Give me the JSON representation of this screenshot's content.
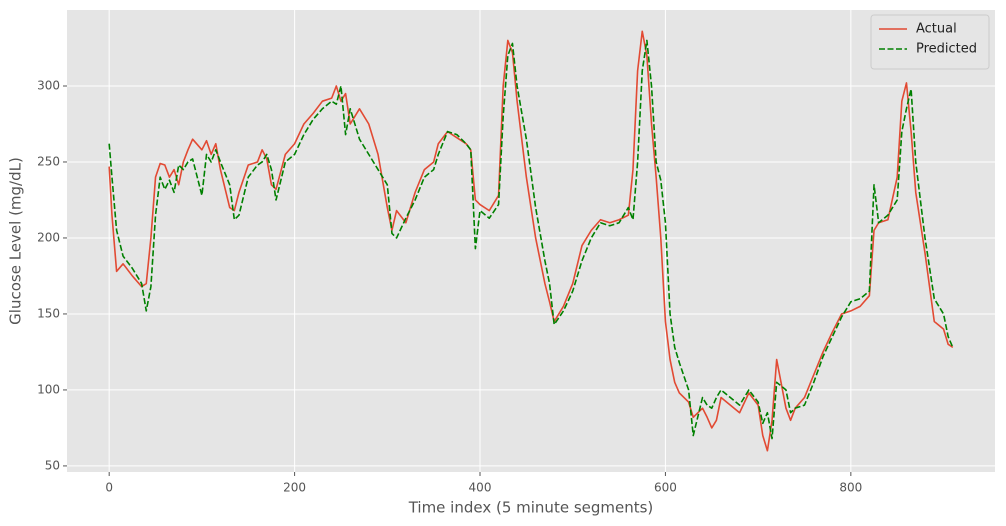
{
  "chart_data": {
    "type": "line",
    "x_label": "Time index (5 minute segments)",
    "y_label": "Glucose Level (mg/dL)",
    "x": [
      0,
      3,
      8,
      15,
      25,
      35,
      40,
      45,
      50,
      55,
      60,
      65,
      70,
      75,
      80,
      85,
      90,
      100,
      105,
      110,
      115,
      120,
      130,
      135,
      140,
      150,
      160,
      165,
      170,
      175,
      180,
      190,
      200,
      210,
      220,
      230,
      240,
      245,
      250,
      255,
      260,
      270,
      280,
      290,
      300,
      305,
      310,
      320,
      330,
      340,
      350,
      355,
      365,
      375,
      385,
      390,
      395,
      400,
      410,
      420,
      425,
      430,
      435,
      440,
      450,
      460,
      470,
      475,
      480,
      490,
      500,
      510,
      520,
      530,
      540,
      550,
      560,
      565,
      570,
      575,
      580,
      585,
      590,
      595,
      600,
      605,
      610,
      615,
      625,
      630,
      640,
      645,
      650,
      655,
      660,
      670,
      680,
      690,
      700,
      705,
      710,
      715,
      720,
      730,
      735,
      740,
      750,
      760,
      770,
      780,
      790,
      800,
      810,
      820,
      825,
      830,
      840,
      850,
      855,
      860,
      865,
      870,
      880,
      890,
      900,
      905,
      910
    ],
    "series": [
      {
        "name": "Actual",
        "color": "#e24a33",
        "dash": false,
        "values": [
          247,
          215,
          178,
          183,
          175,
          168,
          170,
          200,
          240,
          249,
          248,
          240,
          245,
          235,
          250,
          258,
          265,
          258,
          264,
          255,
          262,
          245,
          220,
          218,
          230,
          248,
          250,
          258,
          252,
          235,
          232,
          255,
          262,
          275,
          282,
          290,
          292,
          300,
          290,
          295,
          275,
          285,
          275,
          255,
          220,
          205,
          218,
          210,
          230,
          245,
          250,
          262,
          270,
          266,
          262,
          258,
          225,
          222,
          218,
          228,
          300,
          330,
          322,
          290,
          240,
          200,
          170,
          158,
          145,
          155,
          170,
          195,
          205,
          212,
          210,
          212,
          215,
          245,
          310,
          336,
          320,
          275,
          240,
          200,
          145,
          120,
          105,
          98,
          92,
          82,
          88,
          82,
          75,
          80,
          95,
          90,
          85,
          98,
          90,
          70,
          60,
          80,
          120,
          88,
          80,
          88,
          95,
          110,
          125,
          138,
          150,
          152,
          155,
          162,
          205,
          210,
          212,
          240,
          290,
          302,
          270,
          230,
          190,
          145,
          140,
          130,
          128
        ]
      },
      {
        "name": "Predicted",
        "color": "#008000",
        "dash": true,
        "values": [
          262,
          240,
          205,
          188,
          180,
          170,
          152,
          168,
          215,
          240,
          232,
          238,
          230,
          248,
          245,
          250,
          252,
          228,
          255,
          250,
          258,
          250,
          235,
          212,
          215,
          240,
          248,
          250,
          255,
          245,
          225,
          250,
          255,
          268,
          278,
          285,
          290,
          288,
          300,
          268,
          285,
          265,
          255,
          245,
          235,
          203,
          200,
          213,
          225,
          240,
          245,
          255,
          270,
          268,
          262,
          258,
          193,
          218,
          213,
          222,
          280,
          320,
          328,
          300,
          265,
          220,
          185,
          170,
          143,
          152,
          165,
          185,
          200,
          210,
          208,
          210,
          220,
          212,
          250,
          310,
          330,
          300,
          250,
          238,
          210,
          150,
          128,
          118,
          100,
          70,
          95,
          90,
          88,
          95,
          100,
          95,
          90,
          100,
          92,
          78,
          85,
          68,
          105,
          100,
          85,
          88,
          90,
          105,
          122,
          135,
          148,
          158,
          160,
          165,
          235,
          210,
          215,
          225,
          270,
          285,
          298,
          250,
          200,
          160,
          150,
          135,
          128
        ]
      }
    ],
    "xlim": [
      -45.5,
      955.5
    ],
    "ylim": [
      46,
      350
    ],
    "xticks": [
      0,
      200,
      400,
      600,
      800
    ],
    "yticks": [
      50,
      100,
      150,
      200,
      250,
      300
    ],
    "grid": true,
    "legend": "upper right"
  }
}
